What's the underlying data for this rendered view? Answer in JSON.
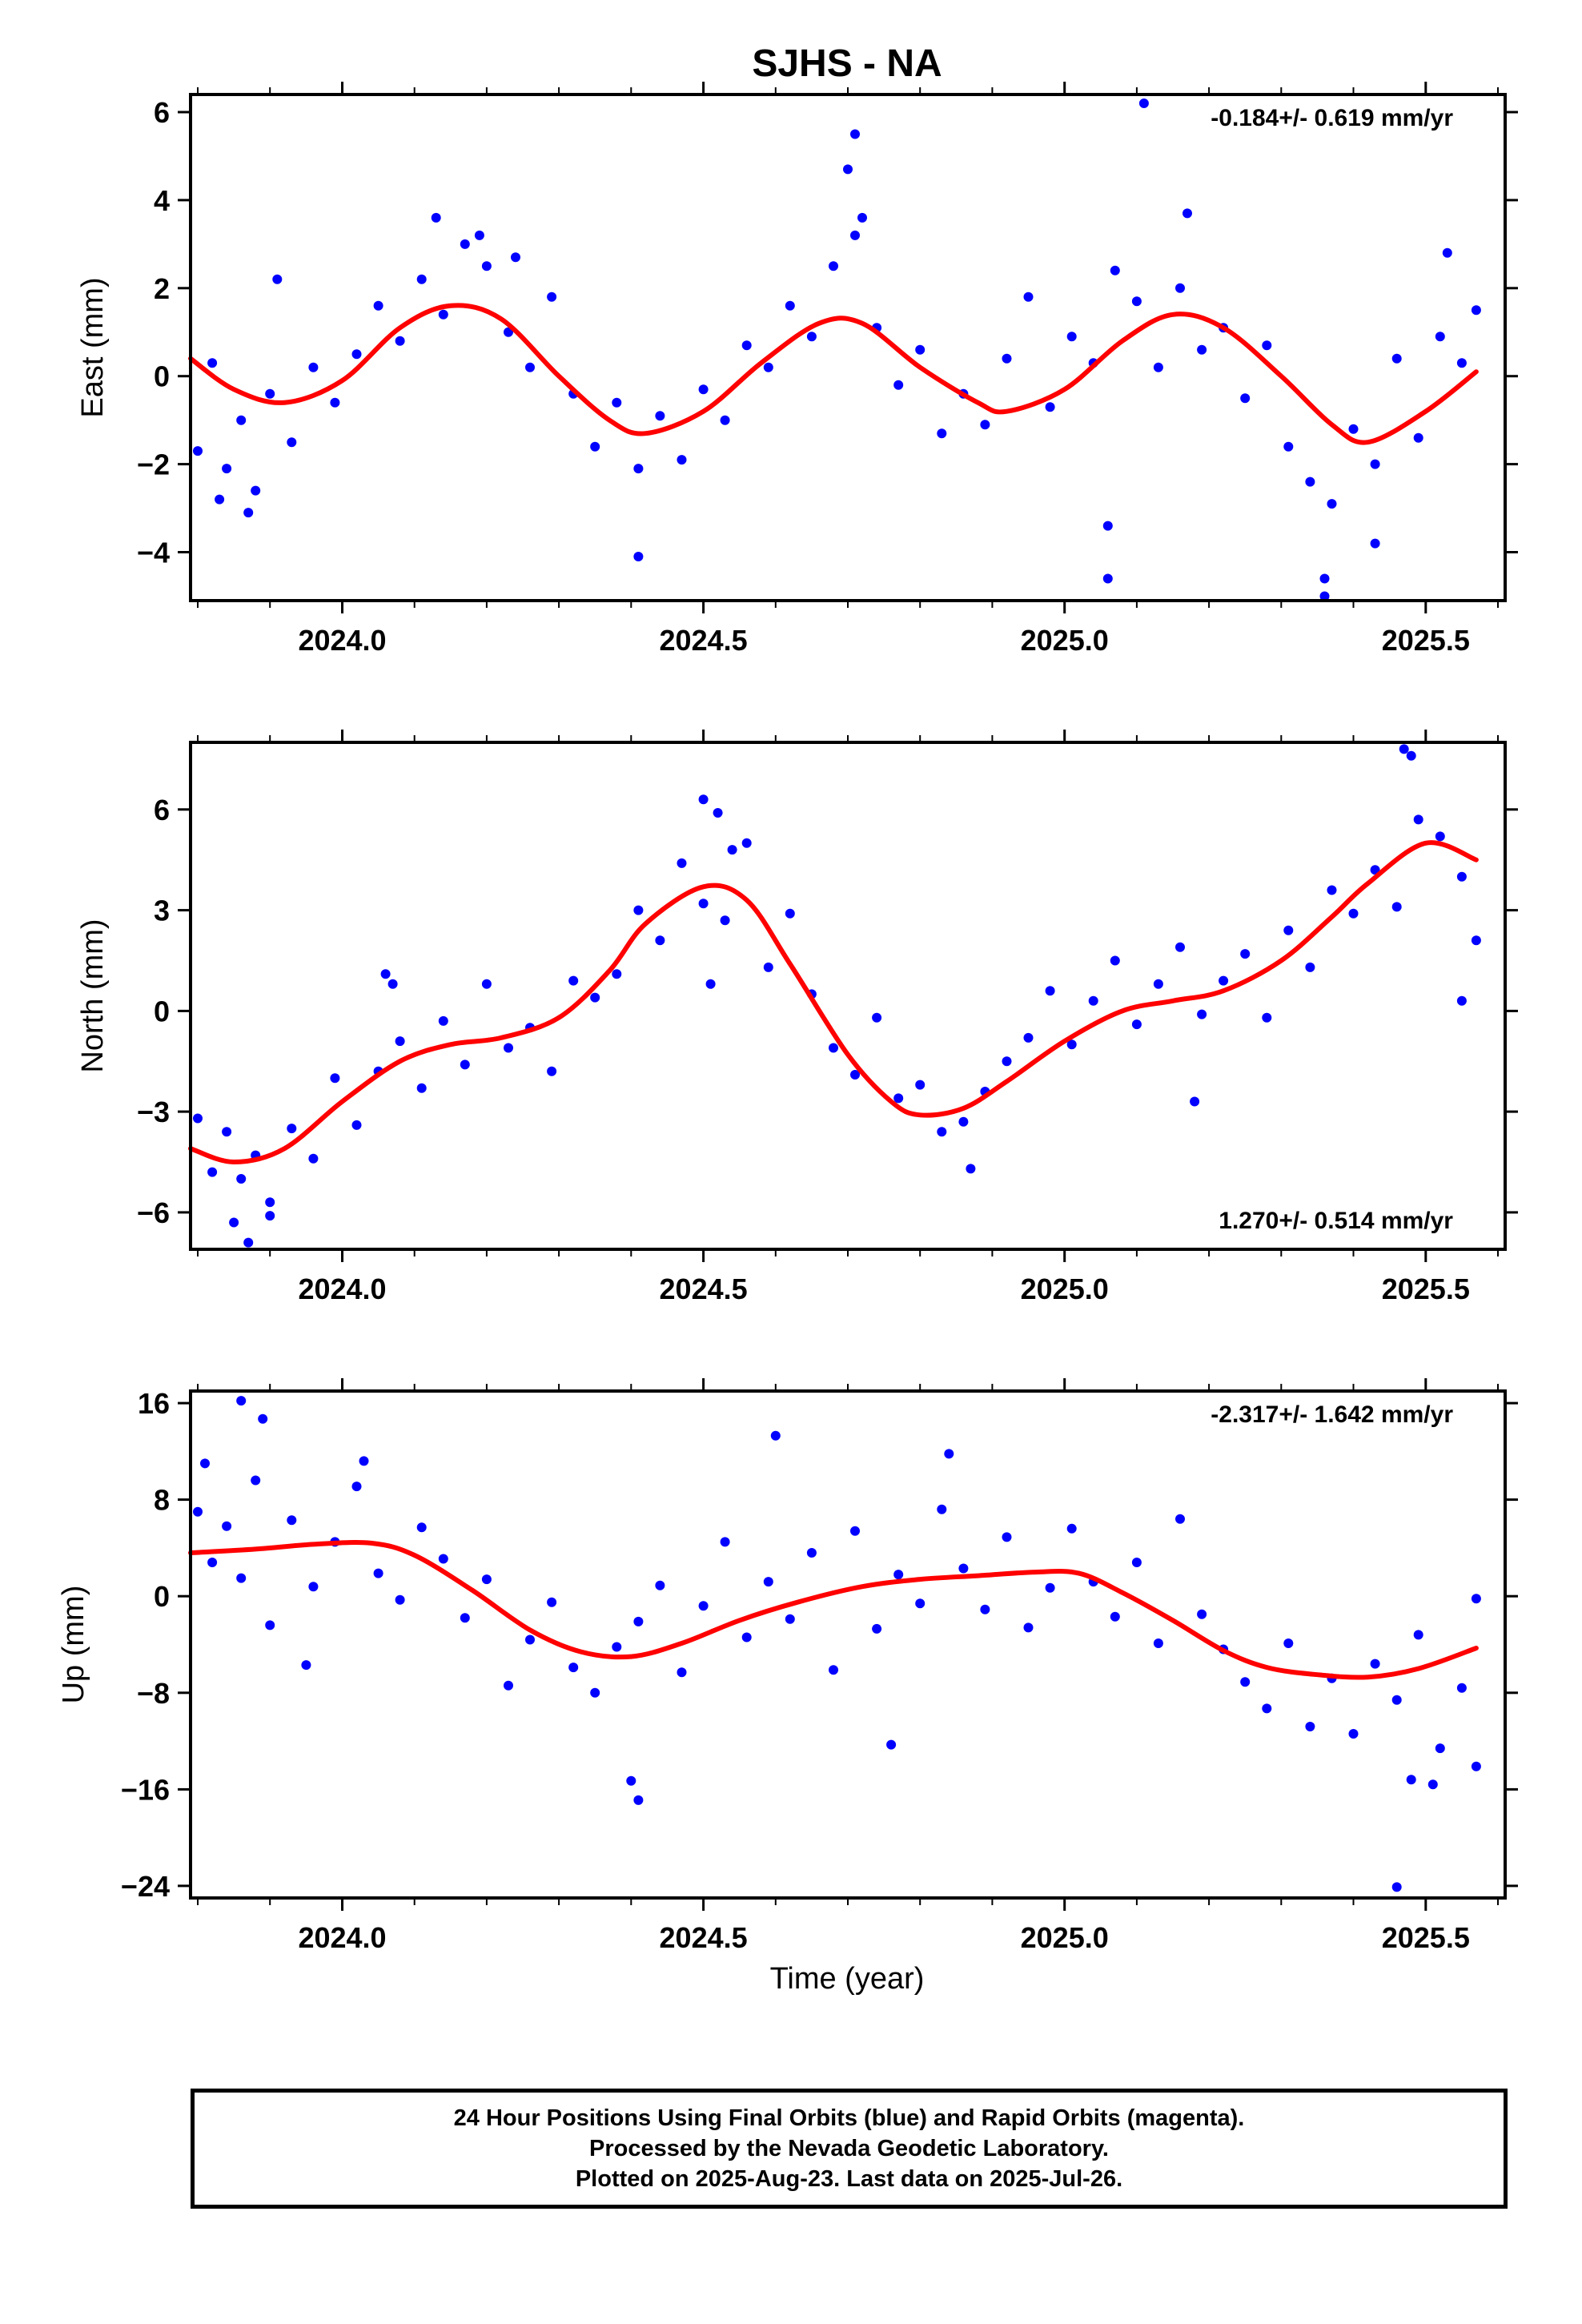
{
  "title": "SJHS - NA",
  "x_axis_label": "Time (year)",
  "footer": {
    "line1": "24 Hour Positions Using Final Orbits (blue) and Rapid Orbits (magenta).",
    "line2": "Processed by the Nevada Geodetic Laboratory.",
    "line3": "Plotted on 2025-Aug-23. Last data on 2025-Jul-26."
  },
  "colors": {
    "points": "#0000ff",
    "fit": "#ff0000",
    "axes": "#000000"
  },
  "chart_data": [
    {
      "type": "scatter",
      "ylabel": "East (mm)",
      "rate_label": "-0.184+/- 0.619 mm/yr",
      "rate_position": "top-right",
      "xlim": [
        2023.79,
        2025.61
      ],
      "ylim": [
        -5.1,
        6.4
      ],
      "xticks": [
        2024.0,
        2024.5,
        2025.0,
        2025.5
      ],
      "xtick_labels": [
        "2024.0",
        "2024.5",
        "2025.0",
        "2025.5"
      ],
      "yticks": [
        -4,
        -2,
        0,
        2,
        4,
        6
      ],
      "ytick_labels": [
        "−4",
        "−2",
        "0",
        "2",
        "4",
        "6"
      ],
      "fit_curve": {
        "x": [
          2023.79,
          2023.85,
          2023.92,
          2024.0,
          2024.08,
          2024.15,
          2024.22,
          2024.3,
          2024.37,
          2024.42,
          2024.5,
          2024.58,
          2024.66,
          2024.72,
          2024.8,
          2024.88,
          2024.92,
          2025.0,
          2025.08,
          2025.15,
          2025.22,
          2025.3,
          2025.37,
          2025.42,
          2025.5,
          2025.57
        ],
        "y": [
          0.4,
          -0.3,
          -0.6,
          -0.1,
          1.1,
          1.6,
          1.3,
          0.0,
          -1.0,
          -1.3,
          -0.8,
          0.3,
          1.2,
          1.2,
          0.2,
          -0.6,
          -0.8,
          -0.3,
          0.8,
          1.4,
          1.1,
          0.0,
          -1.1,
          -1.5,
          -0.8,
          0.1
        ]
      },
      "points": {
        "x": [
          2023.8,
          2023.82,
          2023.84,
          2023.86,
          2023.88,
          2023.9,
          2023.93,
          2023.96,
          2023.99,
          2024.02,
          2024.05,
          2024.08,
          2024.11,
          2024.14,
          2024.17,
          2024.2,
          2024.23,
          2024.26,
          2024.29,
          2024.32,
          2024.35,
          2024.38,
          2024.41,
          2024.44,
          2024.47,
          2024.5,
          2024.53,
          2024.56,
          2024.59,
          2024.62,
          2024.65,
          2024.68,
          2024.71,
          2024.74,
          2024.77,
          2024.8,
          2024.83,
          2024.86,
          2024.89,
          2024.92,
          2024.95,
          2024.98,
          2025.01,
          2025.04,
          2025.07,
          2025.1,
          2025.13,
          2025.16,
          2025.19,
          2025.22,
          2025.25,
          2025.28,
          2025.31,
          2025.34,
          2025.37,
          2025.4,
          2025.43,
          2025.46,
          2025.49,
          2025.52,
          2025.55,
          2025.57,
          2023.83,
          2023.87,
          2023.91,
          2024.13,
          2024.19,
          2024.24,
          2024.7,
          2024.71,
          2024.72,
          2025.06,
          2025.06,
          2025.11,
          2025.17,
          2025.36,
          2025.36,
          2024.41,
          2025.43,
          2025.53
        ],
        "y": [
          -1.7,
          0.3,
          -2.1,
          -1.0,
          -2.6,
          -0.4,
          -1.5,
          0.2,
          -0.6,
          0.5,
          1.6,
          0.8,
          2.2,
          1.4,
          3.0,
          2.5,
          1.0,
          0.2,
          1.8,
          -0.4,
          -1.6,
          -0.6,
          -2.1,
          -0.9,
          -1.9,
          -0.3,
          -1.0,
          0.7,
          0.2,
          1.6,
          0.9,
          2.5,
          3.2,
          1.1,
          -0.2,
          0.6,
          -1.3,
          -0.4,
          -1.1,
          0.4,
          1.8,
          -0.7,
          0.9,
          0.3,
          2.4,
          1.7,
          0.2,
          2.0,
          0.6,
          1.1,
          -0.5,
          0.7,
          -1.6,
          -2.4,
          -2.9,
          -1.2,
          -2.0,
          0.4,
          -1.4,
          0.9,
          0.3,
          1.5,
          -2.8,
          -3.1,
          2.2,
          3.6,
          3.2,
          2.7,
          4.7,
          5.5,
          3.6,
          -3.4,
          -4.6,
          6.2,
          3.7,
          -4.6,
          -5.0,
          -4.1,
          -3.8,
          2.8
        ]
      }
    },
    {
      "type": "scatter",
      "ylabel": "North (mm)",
      "rate_label": "1.270+/- 0.514 mm/yr",
      "rate_position": "bottom-right",
      "xlim": [
        2023.79,
        2025.61
      ],
      "ylim": [
        -7.1,
        8.0
      ],
      "xticks": [
        2024.0,
        2024.5,
        2025.0,
        2025.5
      ],
      "xtick_labels": [
        "2024.0",
        "2024.5",
        "2025.0",
        "2025.5"
      ],
      "yticks": [
        -6,
        -3,
        0,
        3,
        6
      ],
      "ytick_labels": [
        "−6",
        "−3",
        "0",
        "3",
        "6"
      ],
      "fit_curve": {
        "x": [
          2023.79,
          2023.85,
          2023.92,
          2024.0,
          2024.08,
          2024.15,
          2024.22,
          2024.3,
          2024.37,
          2024.42,
          2024.5,
          2024.56,
          2024.62,
          2024.7,
          2024.76,
          2024.8,
          2024.86,
          2024.92,
          2025.0,
          2025.08,
          2025.15,
          2025.22,
          2025.3,
          2025.37,
          2025.42,
          2025.5,
          2025.57
        ],
        "y": [
          -4.1,
          -4.5,
          -4.1,
          -2.7,
          -1.5,
          -1.0,
          -0.8,
          -0.2,
          1.2,
          2.6,
          3.7,
          3.3,
          1.4,
          -1.3,
          -2.7,
          -3.1,
          -2.9,
          -2.1,
          -0.9,
          0.0,
          0.3,
          0.6,
          1.5,
          2.8,
          3.8,
          5.0,
          4.5
        ]
      },
      "points": {
        "x": [
          2023.8,
          2023.82,
          2023.84,
          2023.86,
          2023.88,
          2023.9,
          2023.93,
          2023.96,
          2023.99,
          2024.02,
          2024.05,
          2024.08,
          2024.11,
          2024.14,
          2024.17,
          2024.2,
          2024.23,
          2024.26,
          2024.29,
          2024.32,
          2024.35,
          2024.38,
          2024.41,
          2024.44,
          2024.47,
          2024.5,
          2024.53,
          2024.56,
          2024.59,
          2024.62,
          2024.65,
          2024.68,
          2024.71,
          2024.74,
          2024.77,
          2024.8,
          2024.83,
          2024.86,
          2024.89,
          2024.92,
          2024.95,
          2024.98,
          2025.01,
          2025.04,
          2025.07,
          2025.1,
          2025.13,
          2025.16,
          2025.19,
          2025.22,
          2025.25,
          2025.28,
          2025.31,
          2025.34,
          2025.37,
          2025.4,
          2025.43,
          2025.46,
          2025.49,
          2025.52,
          2025.55,
          2025.57,
          2023.85,
          2023.87,
          2023.9,
          2024.06,
          2024.07,
          2024.5,
          2024.52,
          2024.54,
          2024.51,
          2024.87,
          2025.18,
          2025.47,
          2025.48,
          2025.55
        ],
        "y": [
          -3.2,
          -4.8,
          -3.6,
          -5.0,
          -4.3,
          -5.7,
          -3.5,
          -4.4,
          -2.0,
          -3.4,
          -1.8,
          -0.9,
          -2.3,
          -0.3,
          -1.6,
          0.8,
          -1.1,
          -0.5,
          -1.8,
          0.9,
          0.4,
          1.1,
          3.0,
          2.1,
          4.4,
          3.2,
          2.7,
          5.0,
          1.3,
          2.9,
          0.5,
          -1.1,
          -1.9,
          -0.2,
          -2.6,
          -2.2,
          -3.6,
          -3.3,
          -2.4,
          -1.5,
          -0.8,
          0.6,
          -1.0,
          0.3,
          1.5,
          -0.4,
          0.8,
          1.9,
          -0.1,
          0.9,
          1.7,
          -0.2,
          2.4,
          1.3,
          3.6,
          2.9,
          4.2,
          3.1,
          5.7,
          5.2,
          4.0,
          2.1,
          -6.3,
          -6.9,
          -6.1,
          1.1,
          0.8,
          6.3,
          5.9,
          4.8,
          0.8,
          -4.7,
          -2.7,
          7.8,
          7.6,
          0.3
        ]
      }
    },
    {
      "type": "scatter",
      "ylabel": "Up (mm)",
      "rate_label": "-2.317+/- 1.642 mm/yr",
      "rate_position": "top-right",
      "xlim": [
        2023.79,
        2025.61
      ],
      "ylim": [
        -25,
        17
      ],
      "xticks": [
        2024.0,
        2024.5,
        2025.0,
        2025.5
      ],
      "xtick_labels": [
        "2024.0",
        "2024.5",
        "2025.0",
        "2025.5"
      ],
      "yticks": [
        -24,
        -16,
        -8,
        0,
        8,
        16
      ],
      "ytick_labels": [
        "−24",
        "−16",
        "−8",
        "0",
        "8",
        "16"
      ],
      "fit_curve": {
        "x": [
          2023.79,
          2023.88,
          2023.96,
          2024.04,
          2024.1,
          2024.18,
          2024.26,
          2024.33,
          2024.4,
          2024.47,
          2024.55,
          2024.63,
          2024.72,
          2024.8,
          2024.88,
          2024.96,
          2025.02,
          2025.08,
          2025.15,
          2025.22,
          2025.28,
          2025.35,
          2025.42,
          2025.49,
          2025.57
        ],
        "y": [
          3.6,
          3.9,
          4.3,
          4.4,
          3.4,
          0.5,
          -2.8,
          -4.6,
          -5.0,
          -3.9,
          -2.0,
          -0.5,
          0.8,
          1.4,
          1.7,
          2.0,
          1.9,
          0.3,
          -2.0,
          -4.5,
          -5.9,
          -6.5,
          -6.7,
          -6.0,
          -4.3
        ]
      },
      "points": {
        "x": [
          2023.8,
          2023.82,
          2023.84,
          2023.86,
          2023.88,
          2023.9,
          2023.93,
          2023.96,
          2023.99,
          2024.02,
          2024.05,
          2024.08,
          2024.11,
          2024.14,
          2024.17,
          2024.2,
          2024.23,
          2024.26,
          2024.29,
          2024.32,
          2024.35,
          2024.38,
          2024.41,
          2024.44,
          2024.47,
          2024.5,
          2024.53,
          2024.56,
          2024.59,
          2024.62,
          2024.65,
          2024.68,
          2024.71,
          2024.74,
          2024.77,
          2024.8,
          2024.83,
          2024.86,
          2024.89,
          2024.92,
          2024.95,
          2024.98,
          2025.01,
          2025.04,
          2025.07,
          2025.1,
          2025.13,
          2025.16,
          2025.19,
          2025.22,
          2025.25,
          2025.28,
          2025.31,
          2025.34,
          2025.37,
          2025.4,
          2025.43,
          2025.46,
          2025.49,
          2025.52,
          2025.55,
          2025.57,
          2023.81,
          2023.86,
          2023.89,
          2023.95,
          2024.03,
          2024.4,
          2024.41,
          2024.6,
          2024.76,
          2024.84,
          2025.46,
          2025.48,
          2025.51,
          2025.57
        ],
        "y": [
          7.0,
          2.8,
          5.8,
          1.5,
          9.6,
          -2.4,
          6.3,
          0.8,
          4.5,
          9.1,
          1.9,
          -0.3,
          5.7,
          3.1,
          -1.8,
          1.4,
          -7.4,
          -3.6,
          -0.5,
          -5.9,
          -8.0,
          -4.2,
          -2.1,
          0.9,
          -6.3,
          -0.8,
          4.5,
          -3.4,
          1.2,
          -1.9,
          3.6,
          -6.1,
          5.4,
          -2.7,
          1.8,
          -0.6,
          7.2,
          2.3,
          -1.1,
          4.9,
          -2.6,
          0.7,
          5.6,
          1.2,
          -1.7,
          2.8,
          -3.9,
          6.4,
          -1.5,
          -4.4,
          -7.1,
          -9.3,
          -3.9,
          -10.8,
          -6.8,
          -11.4,
          -5.6,
          -8.6,
          -3.2,
          -12.6,
          -7.6,
          -14.1,
          11.0,
          16.2,
          14.7,
          -5.7,
          11.2,
          -15.3,
          -16.9,
          13.3,
          -12.3,
          11.8,
          -24.1,
          -15.2,
          -15.6,
          -0.2
        ]
      }
    }
  ]
}
